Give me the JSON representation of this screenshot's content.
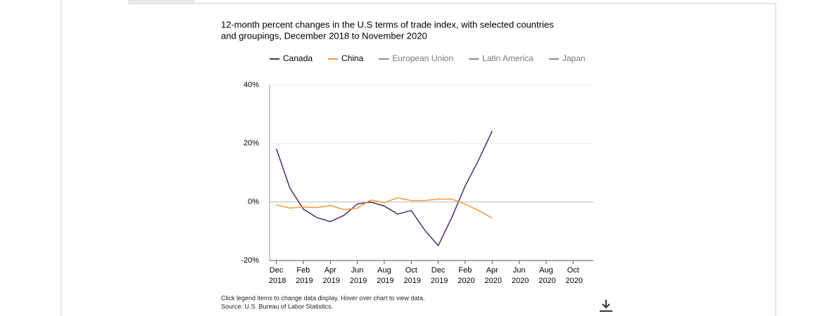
{
  "chart_data": {
    "type": "line",
    "title": [
      "12-month percent changes in the U.S terms of trade index, with selected countries",
      "and groupings, December 2018 to November 2020"
    ],
    "categories": [
      "Dec 2018",
      null,
      "Feb 2019",
      null,
      "Apr 2019",
      null,
      "Jun 2019",
      null,
      "Aug 2019",
      null,
      "Oct 2019",
      null,
      "Dec 2019",
      null,
      "Feb 2020",
      null,
      "Apr 2020",
      null,
      "Jun 2020",
      null,
      "Aug 2020",
      null,
      "Oct 2020",
      null
    ],
    "series": [
      {
        "name": "Canada",
        "color": "#4b2d6e",
        "values": [
          18.2,
          4.8,
          -2.4,
          -5.3,
          -6.7,
          -4.6,
          -0.7,
          0,
          -1.4,
          -4.1,
          -2.9,
          -9.6,
          -14.9,
          -5.3,
          5.5,
          14.4,
          24.3,
          null,
          null,
          null,
          null,
          null,
          null,
          null
        ]
      },
      {
        "name": "China",
        "color": "#f29a3b",
        "values": [
          -1.0,
          -2.1,
          -1.7,
          -1.9,
          -1.2,
          -2.6,
          -2.1,
          0.7,
          -0.2,
          1.4,
          0.5,
          0.5,
          1.0,
          1.0,
          -0.7,
          -2.9,
          -5.5,
          null,
          null,
          null,
          null,
          null,
          null,
          null
        ]
      },
      {
        "name": "European Union",
        "color": "#8a8a8a",
        "hidden": true,
        "values": [
          null,
          null,
          null,
          null,
          null,
          null,
          null,
          null,
          null,
          null,
          null,
          null,
          null,
          null,
          null,
          null,
          null,
          null,
          null,
          null,
          null,
          null,
          null,
          null
        ]
      },
      {
        "name": "Latin America",
        "color": "#8a8a8a",
        "hidden": true,
        "values": [
          null,
          null,
          null,
          null,
          null,
          null,
          null,
          null,
          null,
          null,
          null,
          null,
          null,
          null,
          null,
          null,
          null,
          null,
          null,
          null,
          null,
          null,
          null,
          null
        ]
      },
      {
        "name": "Japan",
        "color": "#8a8a8a",
        "hidden": true,
        "values": [
          null,
          null,
          null,
          null,
          null,
          null,
          null,
          null,
          null,
          null,
          null,
          null,
          null,
          null,
          null,
          null,
          null,
          null,
          null,
          null,
          null,
          null,
          null,
          null
        ]
      }
    ],
    "ylim": [
      -20,
      40
    ],
    "yticks": [
      {
        "value": -20,
        "label": "-20%"
      },
      {
        "value": 0,
        "label": "0%"
      },
      {
        "value": 20,
        "label": "20%"
      },
      {
        "value": 40,
        "label": "40%"
      }
    ],
    "grid": true,
    "legend": "top",
    "notes": [
      "Click legend items to change data display. Hover over chart to view data.",
      "Source: U.S. Bureau of Labor Statistics."
    ]
  }
}
